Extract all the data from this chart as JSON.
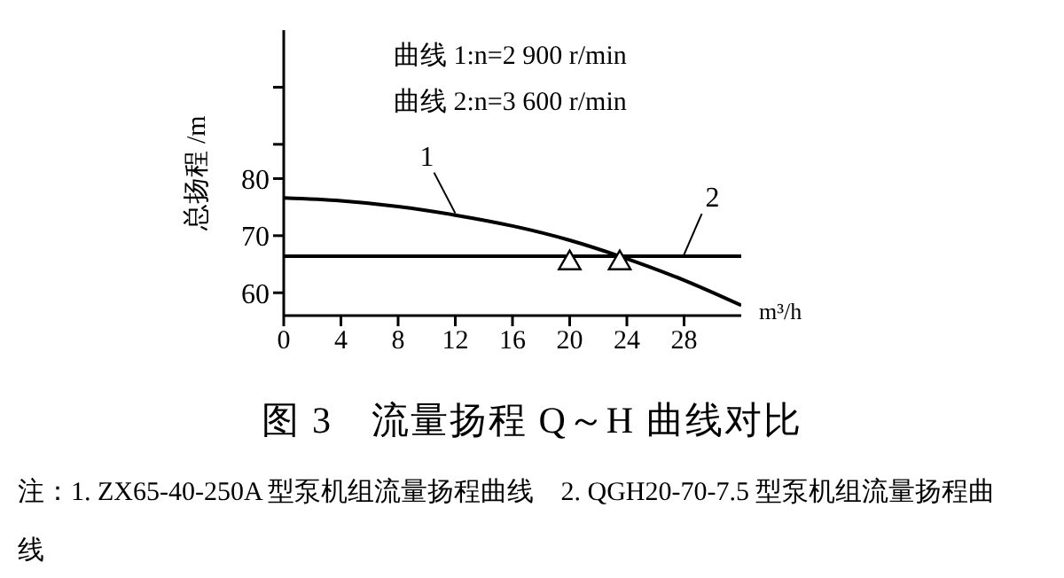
{
  "chart_data": {
    "type": "line",
    "title": "图 3　流量扬程 Q～H 曲线对比",
    "ylabel": "总扬程 /m",
    "xlabel": "m³/h",
    "annotations": [
      "曲线 1:n=2 900 r/min",
      "曲线 2:n=3 600 r/min",
      "注：1. ZX65-40-250A 型泵机组流量扬程曲线　2. QGH20-70-7.5 型泵机组流量扬程曲线"
    ],
    "xlim": [
      0,
      32
    ],
    "xticks": [
      0,
      4,
      8,
      12,
      16,
      20,
      24,
      28
    ],
    "ylim": [
      56,
      106
    ],
    "yticks": [
      60,
      70,
      80,
      {
        "value": 86,
        "label": null
      },
      {
        "value": 96,
        "label": null
      }
    ],
    "grid": false,
    "legend": false,
    "marker": "none",
    "line_style": "solid",
    "series": [
      {
        "name": "1",
        "color": "#000000",
        "x": [
          0,
          4,
          8,
          12,
          16,
          20,
          23.5,
          28,
          32
        ],
        "values": [
          76.6,
          76.1,
          75.1,
          73.6,
          71.7,
          69.2,
          66.4,
          62.2,
          57.8
        ]
      },
      {
        "name": "2",
        "color": "#000000",
        "x": [
          0,
          4,
          8,
          12,
          16,
          20,
          24,
          28,
          32
        ],
        "values": [
          66.4,
          66.4,
          66.4,
          66.4,
          66.4,
          66.4,
          66.4,
          66.4,
          66.4
        ]
      },
      {
        "type": "scatter",
        "marker": "triangle",
        "color": "#000000",
        "x": [
          20,
          23.5
        ],
        "values": [
          65.2,
          65.2
        ]
      }
    ]
  }
}
